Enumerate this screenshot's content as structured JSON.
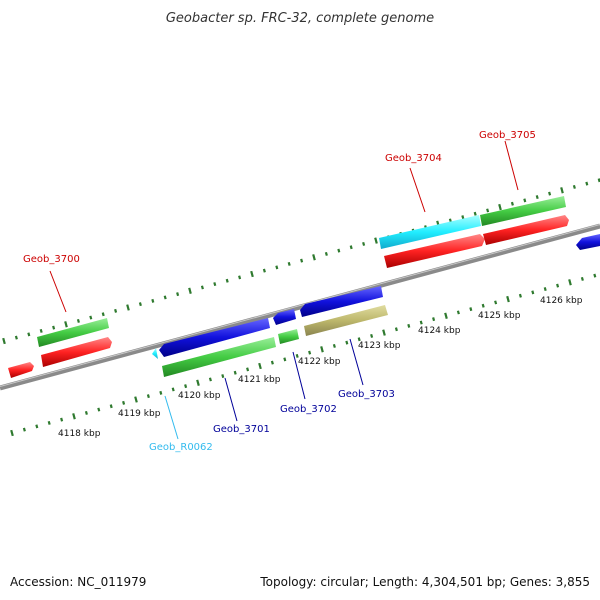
{
  "title": "Geobacter sp. FRC-32, complete genome",
  "footer": {
    "accession": "Accession: NC_011979",
    "summary": "Topology: circular; Length: 4,304,501 bp; Genes: 3,855"
  },
  "colors": {
    "backbone": "#8a8a8a",
    "tick": "#2f7a2f",
    "label_red": "#cc0000",
    "label_blue": "#000099",
    "label_cyan": "#33bbee",
    "red": "#ff2222",
    "green": "#44cc44",
    "blue": "#1111dd",
    "cyan": "#22eeff",
    "khaki": "#bdb76b"
  },
  "ticks": [
    {
      "label": "4118 kbp"
    },
    {
      "label": "4119 kbp"
    },
    {
      "label": "4120 kbp"
    },
    {
      "label": "4121 kbp"
    },
    {
      "label": "4122 kbp"
    },
    {
      "label": "4123 kbp"
    },
    {
      "label": "4124 kbp"
    },
    {
      "label": "4125 kbp"
    },
    {
      "label": "4126 kbp"
    }
  ],
  "labels": {
    "geob_3700": "Geob_3700",
    "geob_3701": "Geob_3701",
    "geob_3702": "Geob_3702",
    "geob_3703": "Geob_3703",
    "geob_3704": "Geob_3704",
    "geob_3705": "Geob_3705",
    "geob_r0062": "Geob_R0062"
  }
}
